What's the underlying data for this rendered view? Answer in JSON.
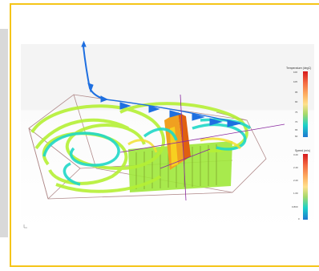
{
  "legend_temperature": {
    "title": "Temperature (degC)",
    "ticks": [
      "100",
      "105",
      "95",
      "90",
      "75",
      "70",
      "65",
      "60"
    ]
  },
  "legend_speed": {
    "title": "Speed (m/s)",
    "ticks": [
      "3.20",
      "2.40",
      "2.20",
      "1.60",
      "0.800",
      "0"
    ]
  },
  "colors": {
    "border": "#f5c518",
    "stream_green": "#b5f035",
    "stream_cyan": "#20d8c8",
    "stream_blue": "#1e6fe0",
    "hot": "#f06a1a",
    "box_edge": "#b08a8a",
    "axis": "#8a2aa0"
  },
  "icons": [
    "coordinate-triad-icon"
  ]
}
